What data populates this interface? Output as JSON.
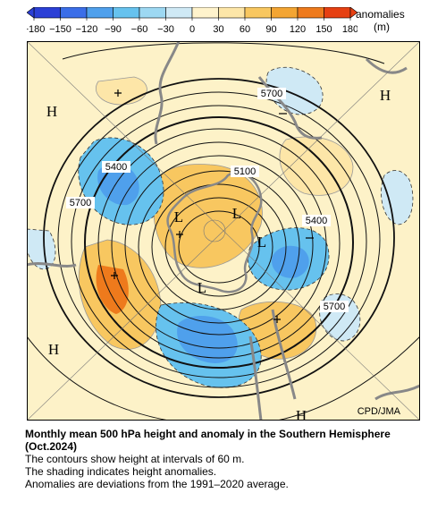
{
  "colorbar": {
    "ticks": [
      "−180",
      "−150",
      "−120",
      "−90",
      "−60",
      "−30",
      "0",
      "30",
      "60",
      "90",
      "120",
      "150",
      "180"
    ],
    "colors": [
      "#2b3fd6",
      "#3b6ee8",
      "#4fa0ec",
      "#66c2ee",
      "#9dd8f2",
      "#cfe9f5",
      "#fff3cc",
      "#fde6a8",
      "#f8c760",
      "#f3a533",
      "#ee7a1c",
      "#e64012"
    ],
    "unit_label": "anomalies",
    "unit": "(m)"
  },
  "map": {
    "contour_labels": [
      "5700",
      "5100",
      "5400",
      "5700",
      "5400",
      "5700"
    ],
    "high_labels": [
      "H",
      "H",
      "H",
      "H"
    ],
    "low_labels": [
      "L",
      "L",
      "L",
      "L"
    ],
    "credit": "CPD/JMA"
  },
  "caption": {
    "title": "Monthly mean 500 hPa height and anomaly in the Southern Hemisphere (Oct.2024)",
    "line1": "The contours show height at intervals of 60 m.",
    "line2": "The shading indicates height anomalies.",
    "line3": "Anomalies are deviations from the 1991–2020 average."
  }
}
